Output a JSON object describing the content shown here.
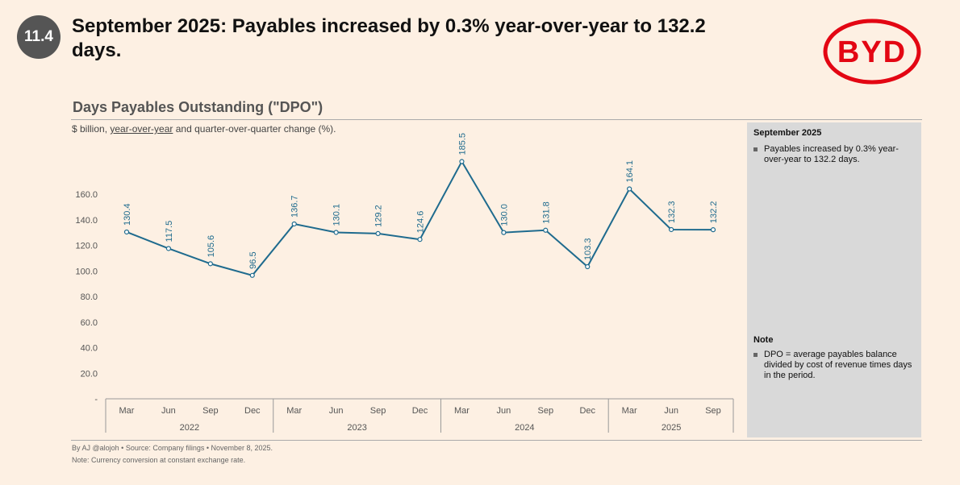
{
  "badge": "11.4",
  "headline": "September 2025: Payables increased by 0.3% year-over-year to 132.2 days.",
  "logo_text": "BYD",
  "colors": {
    "line": "#1f6b8e",
    "logo": "#e30613",
    "background": "#fdf0e3",
    "panel": "#d9d9d9"
  },
  "side": {
    "title1": "September 2025",
    "bullet1": "Payables increased by 0.3% year-over-year to 132.2 days.",
    "title2": "Note",
    "bullet2": "DPO = average payables balance divided by cost of revenue times days in the period."
  },
  "footer": {
    "line1": "By AJ @alojoh • Source: Company filings • November 8, 2025.",
    "line2": "Note: Currency conversion at constant exchange rate."
  },
  "chart_data": {
    "type": "line",
    "title": "Days Payables Outstanding (\"DPO\")",
    "subtitle_pre": "$ billion, ",
    "subtitle_link": "year-over-year",
    "subtitle_post": " and quarter-over-quarter change (%).",
    "categories": [
      "Mar",
      "Jun",
      "Sep",
      "Dec",
      "Mar",
      "Jun",
      "Sep",
      "Dec",
      "Mar",
      "Jun",
      "Sep",
      "Dec",
      "Mar",
      "Jun",
      "Sep"
    ],
    "years": [
      "2022",
      "2023",
      "2024",
      "2025"
    ],
    "values": [
      130.4,
      117.5,
      105.6,
      96.5,
      136.7,
      130.1,
      129.2,
      124.6,
      185.5,
      130.0,
      131.8,
      103.3,
      164.1,
      132.3,
      132.2
    ],
    "yticks": [
      "-",
      "20.0",
      "40.0",
      "60.0",
      "80.0",
      "100.0",
      "120.0",
      "140.0",
      "160.0"
    ],
    "ylim": [
      0,
      160
    ],
    "grid": false
  }
}
